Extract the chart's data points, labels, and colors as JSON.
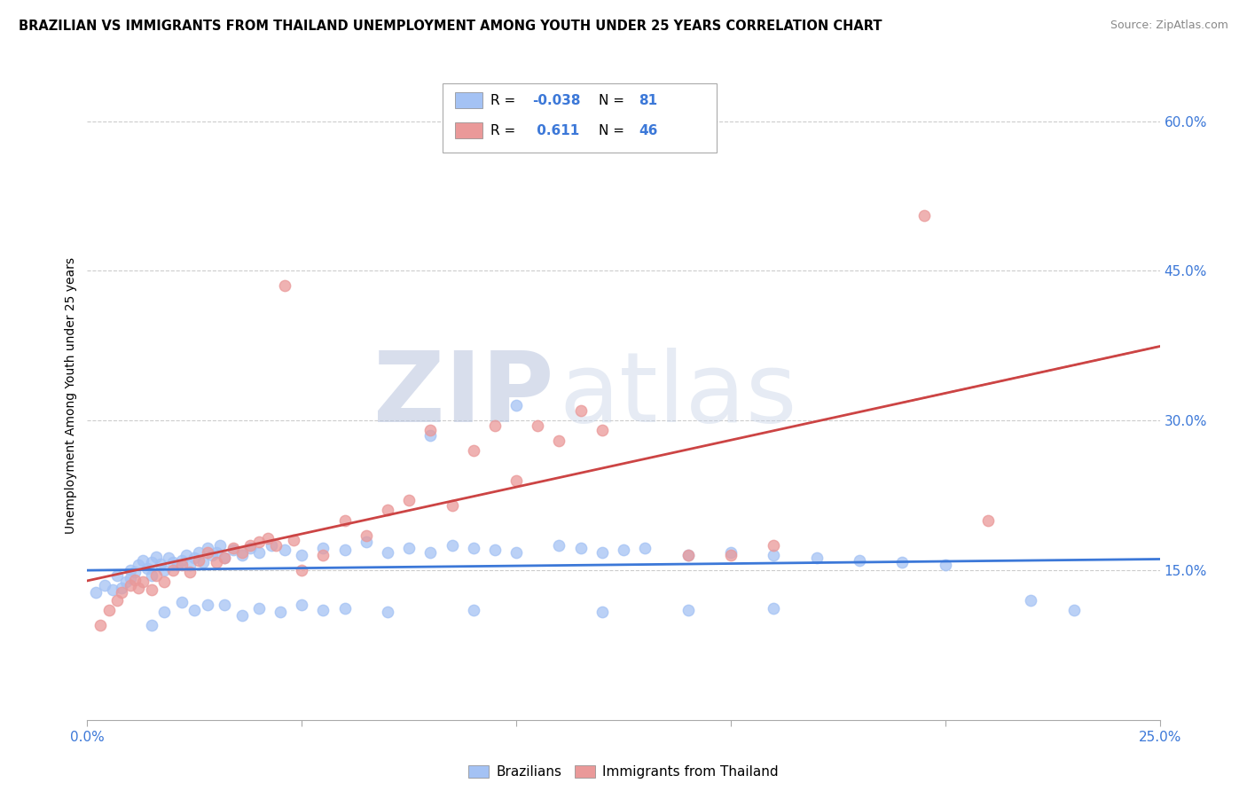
{
  "title": "BRAZILIAN VS IMMIGRANTS FROM THAILAND UNEMPLOYMENT AMONG YOUTH UNDER 25 YEARS CORRELATION CHART",
  "source": "Source: ZipAtlas.com",
  "ylabel": "Unemployment Among Youth under 25 years",
  "xlim": [
    0.0,
    0.25
  ],
  "ylim": [
    0.0,
    0.65
  ],
  "yticks": [
    0.15,
    0.3,
    0.45,
    0.6
  ],
  "ytick_labels": [
    "15.0%",
    "30.0%",
    "45.0%",
    "60.0%"
  ],
  "brazil_color": "#a4c2f4",
  "thailand_color": "#ea9999",
  "brazil_line_color": "#3c78d8",
  "thailand_line_color": "#cc4444",
  "brazil_R": -0.038,
  "brazil_N": 81,
  "thailand_R": 0.611,
  "thailand_N": 46,
  "brazil_scatter_x": [
    0.002,
    0.004,
    0.006,
    0.007,
    0.008,
    0.009,
    0.01,
    0.01,
    0.011,
    0.012,
    0.013,
    0.014,
    0.015,
    0.015,
    0.016,
    0.017,
    0.018,
    0.019,
    0.02,
    0.021,
    0.022,
    0.023,
    0.024,
    0.025,
    0.026,
    0.027,
    0.028,
    0.029,
    0.03,
    0.031,
    0.032,
    0.034,
    0.036,
    0.038,
    0.04,
    0.043,
    0.046,
    0.05,
    0.055,
    0.06,
    0.065,
    0.07,
    0.075,
    0.08,
    0.085,
    0.09,
    0.095,
    0.1,
    0.11,
    0.115,
    0.12,
    0.125,
    0.13,
    0.14,
    0.15,
    0.16,
    0.17,
    0.18,
    0.19,
    0.2,
    0.015,
    0.018,
    0.022,
    0.025,
    0.028,
    0.032,
    0.036,
    0.04,
    0.045,
    0.05,
    0.055,
    0.06,
    0.07,
    0.08,
    0.09,
    0.1,
    0.12,
    0.14,
    0.16,
    0.22,
    0.23
  ],
  "brazil_scatter_y": [
    0.128,
    0.135,
    0.13,
    0.145,
    0.132,
    0.138,
    0.15,
    0.142,
    0.148,
    0.155,
    0.16,
    0.152,
    0.158,
    0.145,
    0.163,
    0.156,
    0.15,
    0.162,
    0.158,
    0.155,
    0.16,
    0.165,
    0.155,
    0.162,
    0.168,
    0.158,
    0.172,
    0.165,
    0.168,
    0.175,
    0.162,
    0.17,
    0.165,
    0.172,
    0.168,
    0.175,
    0.17,
    0.165,
    0.172,
    0.17,
    0.178,
    0.168,
    0.172,
    0.168,
    0.175,
    0.172,
    0.17,
    0.168,
    0.175,
    0.172,
    0.168,
    0.17,
    0.172,
    0.165,
    0.168,
    0.165,
    0.162,
    0.16,
    0.158,
    0.155,
    0.095,
    0.108,
    0.118,
    0.11,
    0.115,
    0.115,
    0.105,
    0.112,
    0.108,
    0.115,
    0.11,
    0.112,
    0.108,
    0.285,
    0.11,
    0.315,
    0.108,
    0.11,
    0.112,
    0.12,
    0.11
  ],
  "thailand_scatter_x": [
    0.003,
    0.005,
    0.007,
    0.008,
    0.01,
    0.011,
    0.012,
    0.013,
    0.015,
    0.016,
    0.018,
    0.02,
    0.022,
    0.024,
    0.026,
    0.028,
    0.03,
    0.032,
    0.034,
    0.036,
    0.038,
    0.04,
    0.042,
    0.044,
    0.046,
    0.048,
    0.05,
    0.055,
    0.06,
    0.065,
    0.07,
    0.075,
    0.08,
    0.085,
    0.09,
    0.095,
    0.1,
    0.105,
    0.11,
    0.115,
    0.12,
    0.14,
    0.15,
    0.16,
    0.195,
    0.21
  ],
  "thailand_scatter_y": [
    0.095,
    0.11,
    0.12,
    0.128,
    0.135,
    0.14,
    0.132,
    0.138,
    0.13,
    0.145,
    0.138,
    0.15,
    0.155,
    0.148,
    0.16,
    0.168,
    0.158,
    0.162,
    0.172,
    0.168,
    0.175,
    0.178,
    0.182,
    0.175,
    0.435,
    0.18,
    0.15,
    0.165,
    0.2,
    0.185,
    0.21,
    0.22,
    0.29,
    0.215,
    0.27,
    0.295,
    0.24,
    0.295,
    0.28,
    0.31,
    0.29,
    0.165,
    0.165,
    0.175,
    0.505,
    0.2
  ],
  "watermark_zip_color": "#c8d0e8",
  "watermark_atlas_color": "#b8c8e0",
  "background_color": "#ffffff",
  "grid_color": "#cccccc"
}
